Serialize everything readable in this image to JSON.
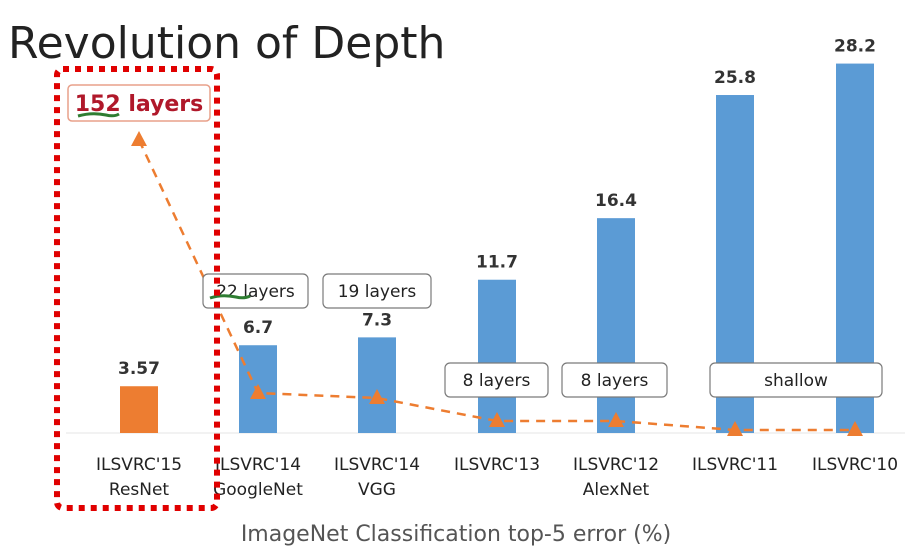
{
  "chart_data": {
    "type": "bar",
    "title": "Revolution of Depth",
    "xlabel": "ImageNet Classification top-5 error (%)",
    "ylabel": "",
    "ylim": [
      0,
      30
    ],
    "grid": false,
    "categories": [
      [
        "ILSVRC'15",
        "ResNet"
      ],
      [
        "ILSVRC'14",
        "GoogleNet"
      ],
      [
        "ILSVRC'14",
        "VGG"
      ],
      [
        "ILSVRC'13",
        ""
      ],
      [
        "ILSVRC'12",
        "AlexNet"
      ],
      [
        "ILSVRC'11",
        ""
      ],
      [
        "ILSVRC'10",
        ""
      ]
    ],
    "values": [
      3.57,
      6.7,
      7.3,
      11.7,
      16.4,
      25.8,
      28.2
    ],
    "value_labels": [
      "3.57",
      "6.7",
      "7.3",
      "11.7",
      "16.4",
      "25.8",
      "28.2"
    ],
    "layers": [
      "152 layers",
      "22 layers",
      "19 layers",
      "8 layers",
      "8 layers",
      "shallow",
      ""
    ],
    "layer_counts": [
      152,
      22,
      19,
      8,
      8,
      0,
      0
    ],
    "bar_colors": [
      "#ed7d31",
      "#5b9bd5",
      "#5b9bd5",
      "#5b9bd5",
      "#5b9bd5",
      "#5b9bd5",
      "#5b9bd5"
    ],
    "line_color": "#ed7d31",
    "highlight_color": "#e00000",
    "label_red": "#b0182a",
    "underline_color": "#2e7d32"
  }
}
